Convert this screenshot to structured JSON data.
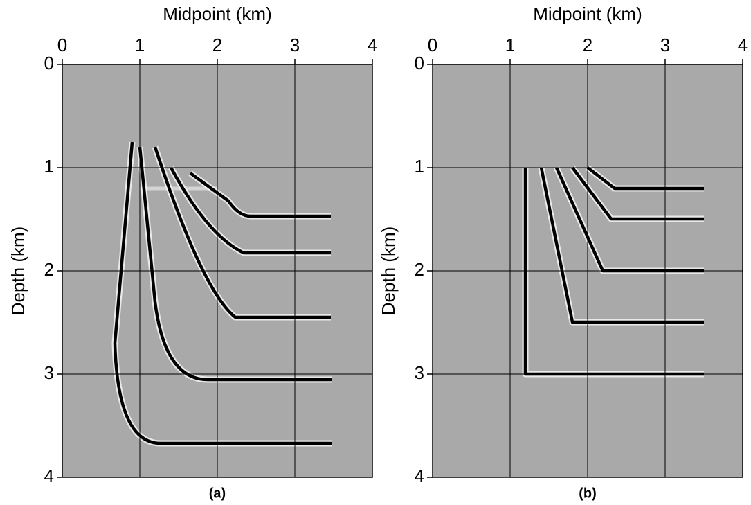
{
  "chart_data": [
    {
      "type": "image",
      "title": "Midpoint (km)",
      "ylabel": "Depth (km)",
      "caption": "(a)",
      "xlim": [
        0,
        4
      ],
      "ylim": [
        0,
        4
      ],
      "invert_y": true,
      "xticks": [
        0,
        1,
        2,
        3,
        4
      ],
      "yticks": [
        0,
        1,
        2,
        3,
        4
      ],
      "grid": true,
      "color": "#a9a9a9"
    },
    {
      "type": "image",
      "title": "Midpoint (km)",
      "ylabel": "Depth (km)",
      "caption": "(b)",
      "xlim": [
        0,
        4
      ],
      "ylim": [
        0,
        4
      ],
      "invert_y": true,
      "xticks": [
        0,
        1,
        2,
        3,
        4
      ],
      "yticks": [
        0,
        1,
        2,
        3,
        4
      ],
      "grid": true,
      "color": "#a9a9a9"
    }
  ]
}
